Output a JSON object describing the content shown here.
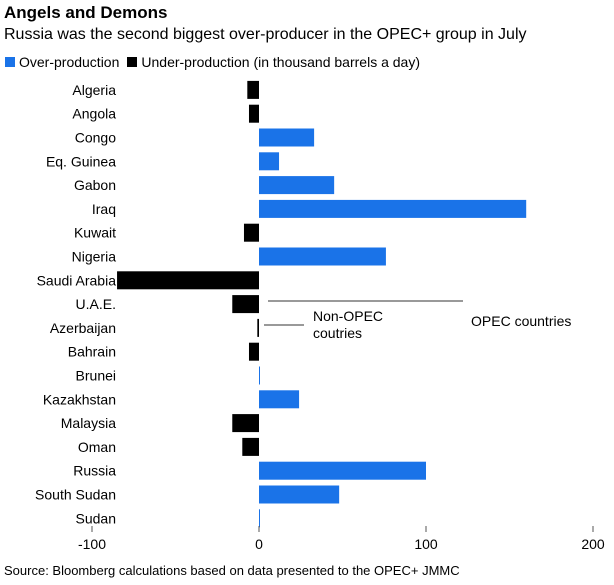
{
  "header": {
    "title": "Angels and Demons",
    "subtitle": "Russia was the second biggest over-producer in the OPEC+ group in July"
  },
  "legend": {
    "over_label": "Over-production",
    "under_label": "Under-production (in thousand barrels a day)"
  },
  "colors": {
    "over": "#1a73e8",
    "under": "#000000",
    "axis": "#555555",
    "annotation": "#333333"
  },
  "annotations": {
    "opec": "OPEC countries",
    "non_opec_line1": "Non-OPEC",
    "non_opec_line2": "coutries"
  },
  "source": "Source: Bloomberg calculations based on data presented to the OPEC+ JMMC",
  "chart_data": {
    "type": "bar",
    "orientation": "horizontal",
    "categories": [
      "Algeria",
      "Angola",
      "Congo",
      "Eq. Guinea",
      "Gabon",
      "Iraq",
      "Kuwait",
      "Nigeria",
      "Saudi Arabia",
      "U.A.E.",
      "Azerbaijan",
      "Bahrain",
      "Brunei",
      "Kazakhstan",
      "Malaysia",
      "Oman",
      "Russia",
      "South Sudan",
      "Sudan"
    ],
    "values": [
      -7,
      -6,
      33,
      12,
      45,
      160,
      -9,
      76,
      -85,
      -16,
      -1,
      -6,
      0.5,
      24,
      -16,
      -10,
      100,
      48,
      0.5
    ],
    "xlim": [
      -100,
      200
    ],
    "xticks": [
      -100,
      0,
      100,
      200
    ],
    "xtick_labels": [
      "-100",
      "0",
      "100",
      "200"
    ],
    "xlabel": "",
    "ylabel": "",
    "grid": false,
    "legend_position": "top-left"
  }
}
